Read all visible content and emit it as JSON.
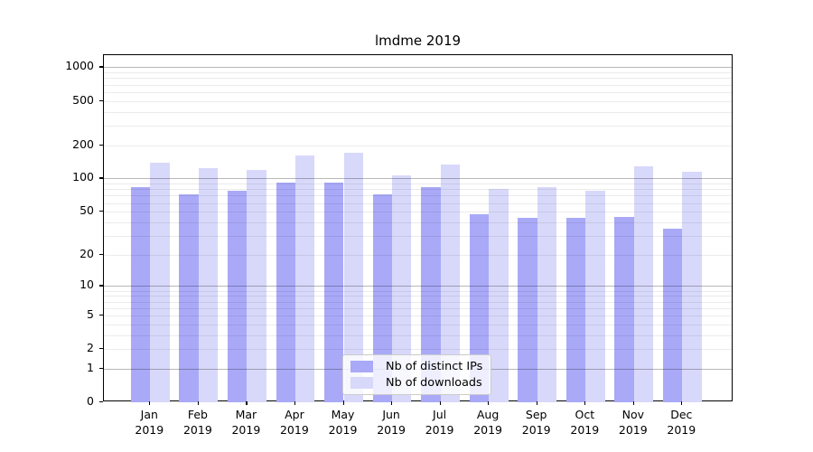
{
  "chart_data": {
    "type": "bar",
    "title": "lmdme 2019",
    "categories": [
      "Jan",
      "Feb",
      "Mar",
      "Apr",
      "May",
      "Jun",
      "Jul",
      "Aug",
      "Sep",
      "Oct",
      "Nov",
      "Dec"
    ],
    "x_sublabel": "2019",
    "series": [
      {
        "name": "Nb of distinct IPs",
        "color": "#a9a9f8",
        "values": [
          83,
          72,
          77,
          91,
          92,
          72,
          83,
          47,
          44,
          44,
          45,
          35
        ]
      },
      {
        "name": "Nb of downloads",
        "color": "#d8d8fa",
        "values": [
          138,
          125,
          120,
          160,
          171,
          106,
          134,
          80,
          83,
          78,
          128,
          115
        ]
      }
    ],
    "yscale": "log1p",
    "ylim": [
      0,
      1284
    ],
    "yticks": [
      0,
      1,
      2,
      5,
      10,
      20,
      50,
      100,
      200,
      500,
      1000
    ],
    "major_gridlines": [
      1,
      10,
      100,
      1000
    ],
    "minor_gridlines": [
      2,
      3,
      4,
      5,
      6,
      7,
      8,
      9,
      20,
      30,
      40,
      50,
      60,
      70,
      80,
      90,
      200,
      300,
      400,
      500,
      600,
      700,
      800,
      900
    ],
    "grid_major_color": "#b8b8b8",
    "grid_minor_color": "#ebebeb",
    "axis_color": "#000000",
    "legend_position": "lower center",
    "xlabel": "",
    "ylabel": ""
  }
}
